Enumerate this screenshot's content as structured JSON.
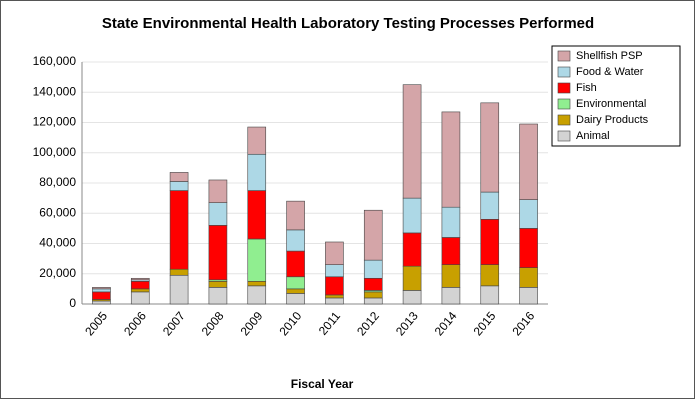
{
  "chart_data": {
    "type": "stacked_bar",
    "title": "State Environmental Health Laboratory Testing Processes Performed",
    "x_label": "Fiscal Year",
    "categories": [
      "2005",
      "2006",
      "2007",
      "2008",
      "2009",
      "2010",
      "2011",
      "2012",
      "2013",
      "2014",
      "2015",
      "2016"
    ],
    "series": [
      {
        "name": "Animal",
        "color": "#d3d3d3",
        "values": [
          2000,
          8000,
          19000,
          11000,
          12000,
          7000,
          4000,
          4000,
          9000,
          11000,
          12000,
          11000
        ]
      },
      {
        "name": "Dairy Products",
        "color": "#c8a000",
        "values": [
          1000,
          2000,
          4000,
          4000,
          3000,
          3000,
          2000,
          4000,
          16000,
          15000,
          14000,
          13000
        ]
      },
      {
        "name": "Environmental",
        "color": "#90ee90",
        "values": [
          0,
          0,
          0,
          1000,
          28000,
          8000,
          0,
          1000,
          0,
          0,
          0,
          0
        ]
      },
      {
        "name": "Fish",
        "color": "#ff0000",
        "values": [
          5000,
          5000,
          52000,
          36000,
          32000,
          17000,
          12000,
          8000,
          22000,
          18000,
          30000,
          26000
        ]
      },
      {
        "name": "Food & Water",
        "color": "#add8e6",
        "values": [
          2000,
          1000,
          6000,
          15000,
          24000,
          14000,
          8000,
          12000,
          23000,
          20000,
          18000,
          19000
        ]
      },
      {
        "name": "Shellfish PSP",
        "color": "#d4a5a8",
        "values": [
          1000,
          1000,
          6000,
          15000,
          18000,
          19000,
          15000,
          33000,
          75000,
          63000,
          59000,
          50000
        ]
      }
    ],
    "ylim": [
      0,
      160000
    ],
    "yticks": [
      0,
      {
        "value": 20000,
        "label": "20,000"
      },
      {
        "value": 40000,
        "label": "40,000"
      },
      {
        "value": 60000,
        "label": "60,000"
      },
      {
        "value": 80000,
        "label": "80,000"
      },
      {
        "value": 100000,
        "label": "100,000"
      },
      {
        "value": 120000,
        "label": "120,000"
      },
      {
        "value": 140000,
        "label": "140,000"
      },
      {
        "value": 160000,
        "label": "160,000"
      }
    ],
    "grid": true,
    "legend": "upper right"
  }
}
